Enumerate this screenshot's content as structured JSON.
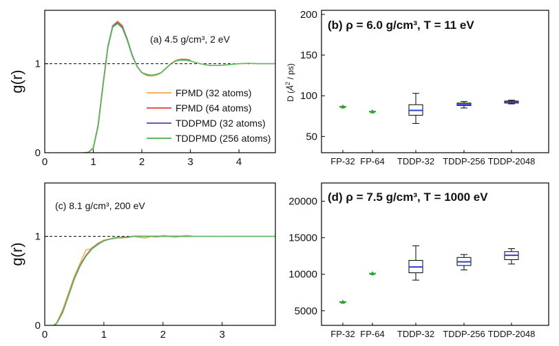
{
  "chart_data": [
    {
      "id": "a",
      "type": "line",
      "ylabel": "g(r)",
      "xlim": [
        0,
        4.75
      ],
      "ylim": [
        0,
        1.6
      ],
      "x_ticks": [
        0,
        1,
        2,
        3,
        4
      ],
      "y_ticks": [
        0,
        1
      ],
      "reference_line": 1,
      "annotation": "(a) 4.5 g/cm³, 2 eV",
      "series": [
        {
          "name": "FPMD (32 atoms)",
          "color": "#f5b25a",
          "x": [
            0.8,
            0.9,
            1.0,
            1.1,
            1.2,
            1.3,
            1.4,
            1.5,
            1.6,
            1.7,
            1.8,
            1.9,
            2.0,
            2.1,
            2.2,
            2.3,
            2.4,
            2.5,
            2.6,
            2.7,
            2.8,
            2.9,
            3.0
          ],
          "y": [
            0,
            0.005,
            0.06,
            0.32,
            0.78,
            1.2,
            1.43,
            1.48,
            1.43,
            1.28,
            1.1,
            0.97,
            0.9,
            0.87,
            0.86,
            0.87,
            0.9,
            0.95,
            1.0,
            1.04,
            1.05,
            1.05,
            1.04
          ]
        },
        {
          "name": "FPMD (64 atoms)",
          "color": "#e8554e",
          "x": [
            0.8,
            0.9,
            1.0,
            1.1,
            1.2,
            1.3,
            1.4,
            1.5,
            1.6,
            1.7,
            1.8,
            1.9,
            2.0,
            2.1,
            2.2,
            2.3,
            2.4,
            2.5,
            2.6,
            2.7,
            2.8,
            2.9,
            3.0
          ],
          "y": [
            0,
            0.004,
            0.05,
            0.3,
            0.75,
            1.18,
            1.42,
            1.47,
            1.42,
            1.27,
            1.1,
            0.97,
            0.9,
            0.87,
            0.87,
            0.88,
            0.9,
            0.95,
            1.0,
            1.03,
            1.05,
            1.05,
            1.04
          ]
        },
        {
          "name": "TDDPMD (32 atoms)",
          "color": "#5a5fb8",
          "x": [
            0.8,
            0.9,
            1.0,
            1.1,
            1.2,
            1.3,
            1.4,
            1.5,
            1.6,
            1.7,
            1.8,
            1.9,
            2.0,
            2.1,
            2.2,
            2.3,
            2.4,
            2.5,
            2.6,
            2.7,
            2.8,
            2.9,
            3.0
          ],
          "y": [
            0,
            0.004,
            0.05,
            0.31,
            0.76,
            1.19,
            1.42,
            1.46,
            1.41,
            1.27,
            1.1,
            0.97,
            0.9,
            0.88,
            0.87,
            0.88,
            0.9,
            0.95,
            1.0,
            1.03,
            1.04,
            1.04,
            1.03
          ]
        },
        {
          "name": "TDDPMD (256 atoms)",
          "color": "#5cb85c",
          "x": [
            0.8,
            0.9,
            1.0,
            1.1,
            1.2,
            1.3,
            1.4,
            1.5,
            1.6,
            1.7,
            1.8,
            1.9,
            2.0,
            2.1,
            2.2,
            2.3,
            2.4,
            2.5,
            2.6,
            2.7,
            2.8,
            2.9,
            3.0,
            3.2,
            3.4,
            3.6,
            3.8,
            4.0,
            4.2,
            4.4,
            4.75
          ],
          "y": [
            0,
            0.004,
            0.05,
            0.3,
            0.75,
            1.18,
            1.41,
            1.45,
            1.4,
            1.26,
            1.09,
            0.97,
            0.9,
            0.88,
            0.87,
            0.88,
            0.9,
            0.95,
            1.0,
            1.03,
            1.04,
            1.04,
            1.03,
            1.0,
            0.98,
            0.98,
            0.99,
            1.0,
            1.005,
            1.0,
            1.0
          ]
        }
      ]
    },
    {
      "id": "b",
      "type": "box",
      "title": "(b) ρ = 6.0 g/cm³, T = 11 eV",
      "ylabel_prefix": "D",
      "ylabel_symbol": "Å",
      "ylabel_exp": "2",
      "ylabel_suffix": " / ps)",
      "ylim": [
        30,
        205
      ],
      "y_ticks": [
        50,
        100,
        150,
        200
      ],
      "categories": [
        "FP-32",
        "FP-64",
        "TDDP-32",
        "TDDP-256",
        "TDDP-2048"
      ],
      "boxes": [
        {
          "kind": "marker",
          "value": 86.5,
          "color": "#2ca02c"
        },
        {
          "kind": "marker",
          "value": 80.5,
          "color": "#2ca02c"
        },
        {
          "kind": "box",
          "whisker_low": 66,
          "q1": 76,
          "median": 82,
          "q3": 89,
          "whisker_high": 103
        },
        {
          "kind": "box",
          "whisker_low": 85,
          "q1": 88,
          "median": 89.5,
          "q3": 91,
          "whisker_high": 93
        },
        {
          "kind": "box",
          "whisker_low": 90,
          "q1": 91,
          "median": 92.5,
          "q3": 93.5,
          "whisker_high": 94.5
        }
      ]
    },
    {
      "id": "c",
      "type": "line",
      "ylabel": "g(r)",
      "xlim": [
        0,
        3.9
      ],
      "ylim": [
        0,
        1.6
      ],
      "x_ticks": [
        0,
        1,
        2,
        3
      ],
      "y_ticks": [
        0,
        1
      ],
      "reference_line": 1,
      "annotation": "(c) 8.1 g/cm³, 200 eV",
      "series": [
        {
          "name": "FPMD (32 atoms)",
          "color": "#f5b25a",
          "x": [
            0.15,
            0.2,
            0.3,
            0.4,
            0.5,
            0.6,
            0.7,
            0.8,
            0.9,
            1.0,
            1.1,
            1.2,
            1.3,
            1.4,
            1.5,
            1.6,
            1.7,
            1.8,
            1.9,
            2.0,
            2.1,
            2.2,
            2.3,
            2.4,
            2.5
          ],
          "y": [
            0,
            0.03,
            0.17,
            0.36,
            0.55,
            0.7,
            0.85,
            0.86,
            0.92,
            0.96,
            0.97,
            0.99,
            0.98,
            0.99,
            1.0,
            0.99,
            0.98,
            1.0,
            0.99,
            1.01,
            1.0,
            0.99,
            1.0,
            1.01,
            1.0
          ]
        },
        {
          "name": "FPMD (64 atoms)",
          "color": "#e8554e",
          "x": [
            0.15,
            0.2,
            0.3,
            0.4,
            0.5,
            0.6,
            0.7,
            0.8,
            0.9,
            1.0,
            1.1,
            1.2,
            1.3,
            1.4,
            1.5,
            1.6,
            1.8,
            2.0,
            2.2,
            2.5
          ],
          "y": [
            0,
            0.02,
            0.15,
            0.34,
            0.53,
            0.68,
            0.79,
            0.87,
            0.92,
            0.95,
            0.97,
            0.98,
            0.99,
            0.99,
            1.0,
            1.0,
            1.0,
            1.0,
            1.0,
            1.0
          ]
        },
        {
          "name": "TDDPMD (32 atoms)",
          "color": "#5a5fb8",
          "x": [
            0.15,
            0.2,
            0.3,
            0.4,
            0.5,
            0.6,
            0.7,
            0.8,
            0.9,
            1.0,
            1.1,
            1.2,
            1.3,
            1.4,
            1.5,
            1.6,
            1.8,
            2.0,
            2.2,
            2.5
          ],
          "y": [
            0,
            0.02,
            0.14,
            0.33,
            0.52,
            0.67,
            0.78,
            0.86,
            0.91,
            0.95,
            0.97,
            0.98,
            0.99,
            0.99,
            1.0,
            1.0,
            1.0,
            1.0,
            1.0,
            1.0
          ]
        },
        {
          "name": "TDDPMD (256 atoms)",
          "color": "#5cb85c",
          "x": [
            0.15,
            0.2,
            0.3,
            0.4,
            0.5,
            0.6,
            0.7,
            0.8,
            0.9,
            1.0,
            1.1,
            1.2,
            1.3,
            1.4,
            1.5,
            1.6,
            1.8,
            2.0,
            2.4,
            2.8,
            3.2,
            3.6,
            3.9
          ],
          "y": [
            0,
            0.02,
            0.14,
            0.33,
            0.52,
            0.67,
            0.78,
            0.86,
            0.91,
            0.95,
            0.97,
            0.98,
            0.99,
            0.99,
            1.0,
            1.0,
            1.0,
            1.0,
            1.0,
            1.0,
            1.0,
            1.0,
            1.0
          ]
        }
      ]
    },
    {
      "id": "d",
      "type": "box",
      "title": "(d) ρ = 7.5 g/cm³, T = 1000 eV",
      "ylim": [
        3000,
        22500
      ],
      "y_ticks": [
        5000,
        10000,
        15000,
        20000
      ],
      "categories": [
        "FP-32",
        "FP-64",
        "TDDP-32",
        "TDDP-256",
        "TDDP-2048"
      ],
      "boxes": [
        {
          "kind": "marker",
          "value": 6200,
          "color": "#2ca02c"
        },
        {
          "kind": "marker",
          "value": 10100,
          "color": "#2ca02c"
        },
        {
          "kind": "box",
          "whisker_low": 9200,
          "q1": 10200,
          "median": 11000,
          "q3": 11900,
          "whisker_high": 13900
        },
        {
          "kind": "box",
          "whisker_low": 10600,
          "q1": 11200,
          "median": 11700,
          "q3": 12300,
          "whisker_high": 12700
        },
        {
          "kind": "box",
          "whisker_low": 11400,
          "q1": 12000,
          "median": 12600,
          "q3": 13100,
          "whisker_high": 13500
        }
      ]
    }
  ]
}
